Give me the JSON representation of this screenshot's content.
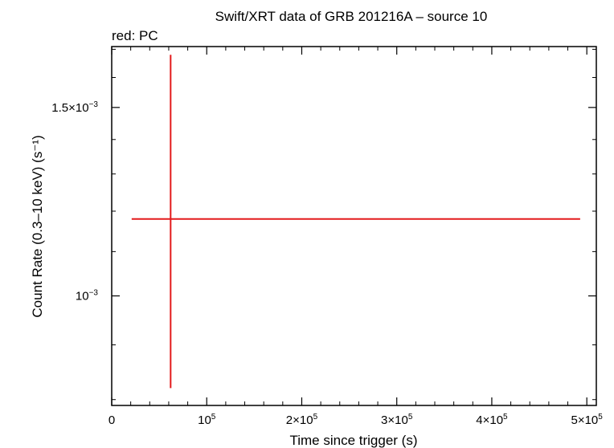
{
  "chart_data": {
    "type": "scatter",
    "title": "Swift/XRT data of GRB 201216A – source 10",
    "subtitle": "red: PC",
    "xlabel": "Time since trigger (s)",
    "ylabel": "Count Rate (0.3–10 keV) (s⁻¹)",
    "xlim": [
      0,
      510000
    ],
    "ylim": [
      0.00079,
      0.00171
    ],
    "yscale": "log",
    "grid": false,
    "legend": "none",
    "x_ticks": [
      {
        "value": 0,
        "label": "0",
        "exp": ""
      },
      {
        "value": 100000,
        "label": "10",
        "exp": "5"
      },
      {
        "value": 200000,
        "label": "2×10",
        "exp": "5"
      },
      {
        "value": 300000,
        "label": "3×10",
        "exp": "5"
      },
      {
        "value": 400000,
        "label": "4×10",
        "exp": "5"
      },
      {
        "value": 500000,
        "label": "5×10",
        "exp": "5"
      }
    ],
    "y_ticks": [
      {
        "value": 0.001,
        "label": "10",
        "exp": "−3"
      },
      {
        "value": 0.0015,
        "label": "1.5×10",
        "exp": "−3"
      }
    ],
    "y_minor_ticks": [
      0.0008,
      0.0009,
      0.0011,
      0.0012,
      0.0013,
      0.0014,
      0.0016,
      0.0017
    ],
    "series": [
      {
        "color": "#e31a1c",
        "points": [
          {
            "x": 62000,
            "x_lo": 21000,
            "x_hi": 493000,
            "y": 0.00118,
            "y_lo": 0.00082,
            "y_hi": 0.00168
          }
        ]
      }
    ]
  }
}
